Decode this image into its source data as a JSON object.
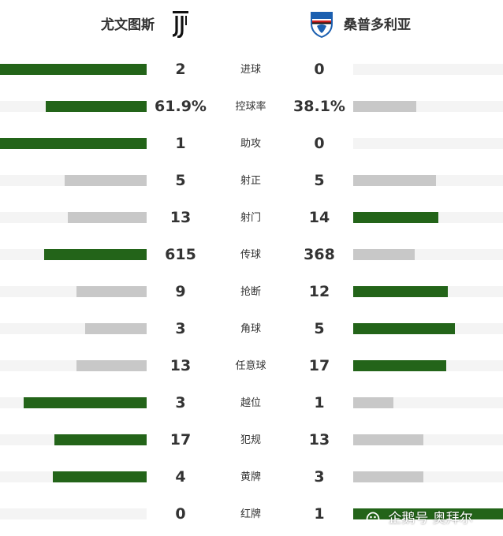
{
  "home_team": {
    "name": "尤文图斯",
    "crest_icon": "juventus-crest-icon",
    "crest_color": "#111111"
  },
  "away_team": {
    "name": "桑普多利亚",
    "crest_icon": "sampdoria-crest-icon",
    "crest_colors": [
      "#1b5fb0",
      "#ffffff",
      "#d02020",
      "#111111"
    ]
  },
  "colors": {
    "winner_bar": "#236419",
    "loser_bar": "#c8c8c8",
    "track": "#f4f4f4",
    "text": "#333333"
  },
  "stats": [
    {
      "label": "进球",
      "home": "2",
      "away": "0",
      "home_fill": 1.0,
      "away_fill": 0.0,
      "home_lead": true,
      "away_lead": false
    },
    {
      "label": "控球率",
      "home": "61.9%",
      "away": "38.1%",
      "home_fill": 0.69,
      "away_fill": 0.42,
      "home_lead": true,
      "away_lead": false
    },
    {
      "label": "助攻",
      "home": "1",
      "away": "0",
      "home_fill": 1.0,
      "away_fill": 0.0,
      "home_lead": true,
      "away_lead": false
    },
    {
      "label": "射正",
      "home": "5",
      "away": "5",
      "home_fill": 0.56,
      "away_fill": 0.55,
      "home_lead": false,
      "away_lead": false
    },
    {
      "label": "射门",
      "home": "13",
      "away": "14",
      "home_fill": 0.54,
      "away_fill": 0.57,
      "home_lead": false,
      "away_lead": true
    },
    {
      "label": "传球",
      "home": "615",
      "away": "368",
      "home_fill": 0.7,
      "away_fill": 0.41,
      "home_lead": true,
      "away_lead": false
    },
    {
      "label": "抢断",
      "home": "9",
      "away": "12",
      "home_fill": 0.48,
      "away_fill": 0.63,
      "home_lead": false,
      "away_lead": true
    },
    {
      "label": "角球",
      "home": "3",
      "away": "5",
      "home_fill": 0.42,
      "away_fill": 0.68,
      "home_lead": false,
      "away_lead": true
    },
    {
      "label": "任意球",
      "home": "13",
      "away": "17",
      "home_fill": 0.48,
      "away_fill": 0.62,
      "home_lead": false,
      "away_lead": true
    },
    {
      "label": "越位",
      "home": "3",
      "away": "1",
      "home_fill": 0.84,
      "away_fill": 0.27,
      "home_lead": true,
      "away_lead": false
    },
    {
      "label": "犯规",
      "home": "17",
      "away": "13",
      "home_fill": 0.63,
      "away_fill": 0.47,
      "home_lead": true,
      "away_lead": false
    },
    {
      "label": "黄牌",
      "home": "4",
      "away": "3",
      "home_fill": 0.64,
      "away_fill": 0.47,
      "home_lead": true,
      "away_lead": false
    },
    {
      "label": "红牌",
      "home": "0",
      "away": "1",
      "home_fill": 0.0,
      "away_fill": 1.0,
      "home_lead": false,
      "away_lead": true
    }
  ],
  "watermark": {
    "text": "企鹅号 奥拜尔",
    "icon": "penguin-icon"
  }
}
